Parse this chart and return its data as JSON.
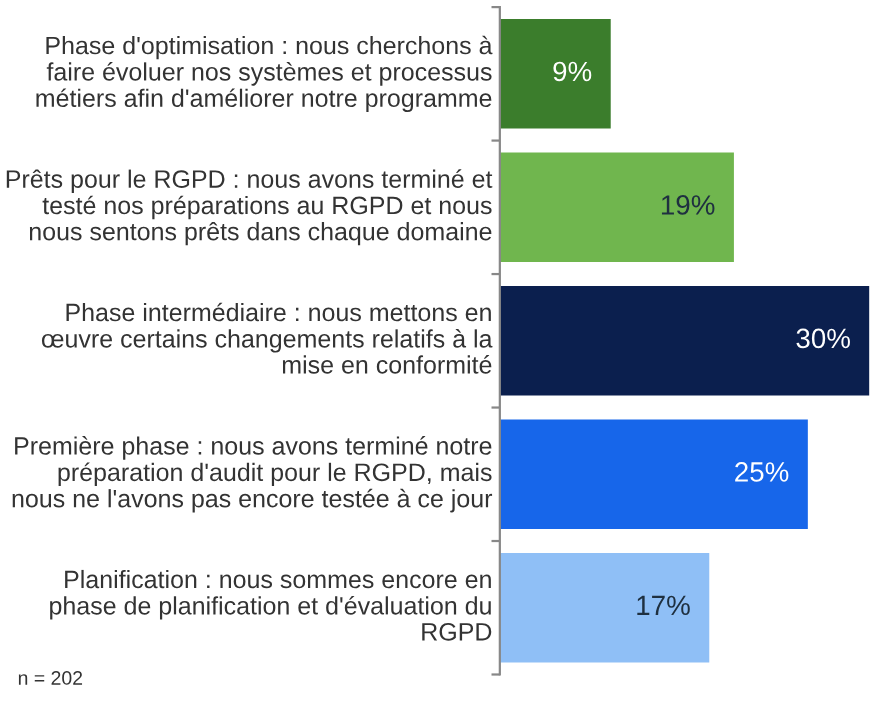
{
  "chart_data": {
    "type": "bar",
    "orientation": "horizontal",
    "categories": [
      "Phase d'optimisation : nous cherchons à faire évoluer nos systèmes et processus métiers afin d'améliorer notre programme",
      "Prêts pour le RGPD : nous avons terminé et testé nos préparations au RGPD et nous nous sentons prêts dans chaque domaine",
      "Phase intermédiaire : nous mettons en œuvre certains changements relatifs à la mise en conformité",
      "Première phase : nous avons terminé notre préparation d'audit pour le RGPD, mais nous ne l'avons pas encore testée à ce jour",
      "Planification : nous sommes encore en phase de planification et d'évaluation du RGPD"
    ],
    "values": [
      9,
      19,
      30,
      25,
      17
    ],
    "colors": [
      "#3b7d2c",
      "#70b64e",
      "#0b1f4e",
      "#1766ea",
      "#8fbff6"
    ],
    "data_labels": true,
    "value_labels": [
      "9%",
      "19%",
      "30%",
      "25%",
      "17%"
    ],
    "annotations": [
      "n = 202"
    ]
  }
}
